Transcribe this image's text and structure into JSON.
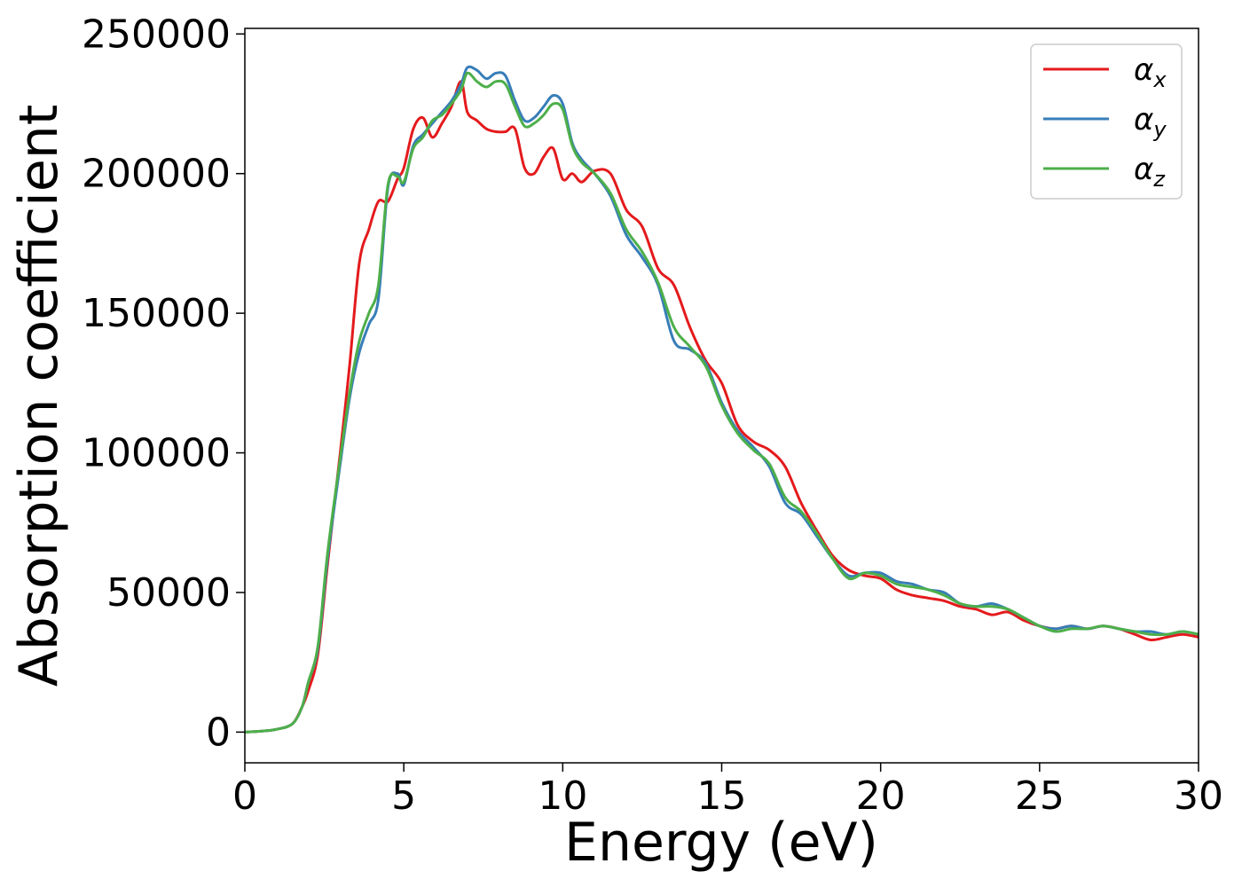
{
  "chart_data": {
    "type": "line",
    "title": "",
    "xlabel": "Energy (eV)",
    "ylabel": "Absorption coefficient",
    "xlim": [
      0,
      30
    ],
    "ylim": [
      -11000,
      252000
    ],
    "xticks": [
      0,
      5,
      10,
      15,
      20,
      25,
      30
    ],
    "xtick_labels": [
      "0",
      "5",
      "10",
      "15",
      "20",
      "25",
      "30"
    ],
    "yticks": [
      0,
      50000,
      100000,
      150000,
      200000,
      250000
    ],
    "ytick_labels": [
      "0",
      "50000",
      "100000",
      "150000",
      "200000",
      "250000"
    ],
    "grid": false,
    "legend_position": "top-right",
    "x": [
      0,
      0.5,
      1,
      1.5,
      1.8,
      2,
      2.3,
      2.6,
      3,
      3.3,
      3.6,
      3.9,
      4.2,
      4.5,
      4.8,
      5,
      5.3,
      5.6,
      5.9,
      6.2,
      6.5,
      6.8,
      7,
      7.3,
      7.6,
      7.9,
      8.2,
      8.5,
      8.8,
      9.1,
      9.4,
      9.7,
      10,
      10.3,
      10.6,
      11,
      11.5,
      12,
      12.5,
      13,
      13.5,
      14,
      14.5,
      15,
      15.5,
      16,
      16.5,
      17,
      17.5,
      18,
      18.5,
      19,
      19.5,
      20,
      20.5,
      21,
      21.5,
      22,
      22.5,
      23,
      23.5,
      24,
      24.5,
      25,
      25.5,
      26,
      26.5,
      27,
      27.5,
      28,
      28.5,
      29,
      29.5,
      30
    ],
    "series": [
      {
        "name": "αx",
        "label_main": "α",
        "label_sub": "x",
        "color": "#e41a1c",
        "values": [
          0,
          300,
          1000,
          3000,
          9000,
          15000,
          28000,
          60000,
          100000,
          132000,
          168000,
          180000,
          190000,
          190000,
          198000,
          202000,
          216000,
          220000,
          213000,
          218000,
          224000,
          233000,
          222000,
          219000,
          216000,
          215000,
          215000,
          216000,
          202000,
          200000,
          206000,
          209000,
          198000,
          200000,
          197000,
          201000,
          200000,
          187000,
          181000,
          166000,
          160000,
          145000,
          133000,
          125000,
          110000,
          104000,
          101000,
          95000,
          82000,
          72000,
          63000,
          58000,
          56000,
          55000,
          51000,
          49000,
          48000,
          47000,
          45000,
          44000,
          42000,
          43000,
          40000,
          38000,
          37000,
          38000,
          37000,
          38000,
          37000,
          35000,
          33000,
          34000,
          35000,
          34000
        ]
      },
      {
        "name": "αy",
        "label_main": "α",
        "label_sub": "y",
        "color": "#377eb8",
        "values": [
          0,
          300,
          1000,
          3000,
          9000,
          18000,
          30000,
          62000,
          96000,
          120000,
          136000,
          146000,
          155000,
          195000,
          200000,
          196000,
          210000,
          214000,
          218000,
          222000,
          226000,
          232000,
          238000,
          237000,
          234000,
          236000,
          235000,
          226000,
          219000,
          220000,
          224000,
          228000,
          225000,
          211000,
          205000,
          200000,
          192000,
          178000,
          170000,
          160000,
          140000,
          137000,
          132000,
          118000,
          108000,
          102000,
          95000,
          82000,
          78000,
          70000,
          62000,
          56000,
          57000,
          57000,
          54000,
          53000,
          51000,
          50000,
          46000,
          45000,
          46000,
          44000,
          41000,
          38000,
          37000,
          38000,
          37000,
          38000,
          37000,
          36000,
          36000,
          35000,
          36000,
          35000
        ]
      },
      {
        "name": "αz",
        "label_main": "α",
        "label_sub": "z",
        "color": "#4daf4a",
        "values": [
          0,
          300,
          1000,
          3000,
          9000,
          18000,
          31000,
          64000,
          98000,
          122000,
          140000,
          150000,
          160000,
          196000,
          199000,
          197000,
          209000,
          213000,
          219000,
          221000,
          225000,
          230000,
          236000,
          233000,
          231000,
          233000,
          232000,
          224000,
          217000,
          218000,
          221000,
          225000,
          223000,
          210000,
          204000,
          200000,
          193000,
          180000,
          172000,
          161000,
          145000,
          138000,
          131000,
          117000,
          107000,
          101000,
          96000,
          84000,
          79000,
          71000,
          62000,
          55000,
          57000,
          56000,
          53000,
          52000,
          51000,
          49000,
          46000,
          45000,
          45000,
          44000,
          41000,
          38000,
          36000,
          37000,
          37000,
          38000,
          37000,
          36000,
          35000,
          35000,
          36000,
          35000
        ]
      }
    ]
  }
}
